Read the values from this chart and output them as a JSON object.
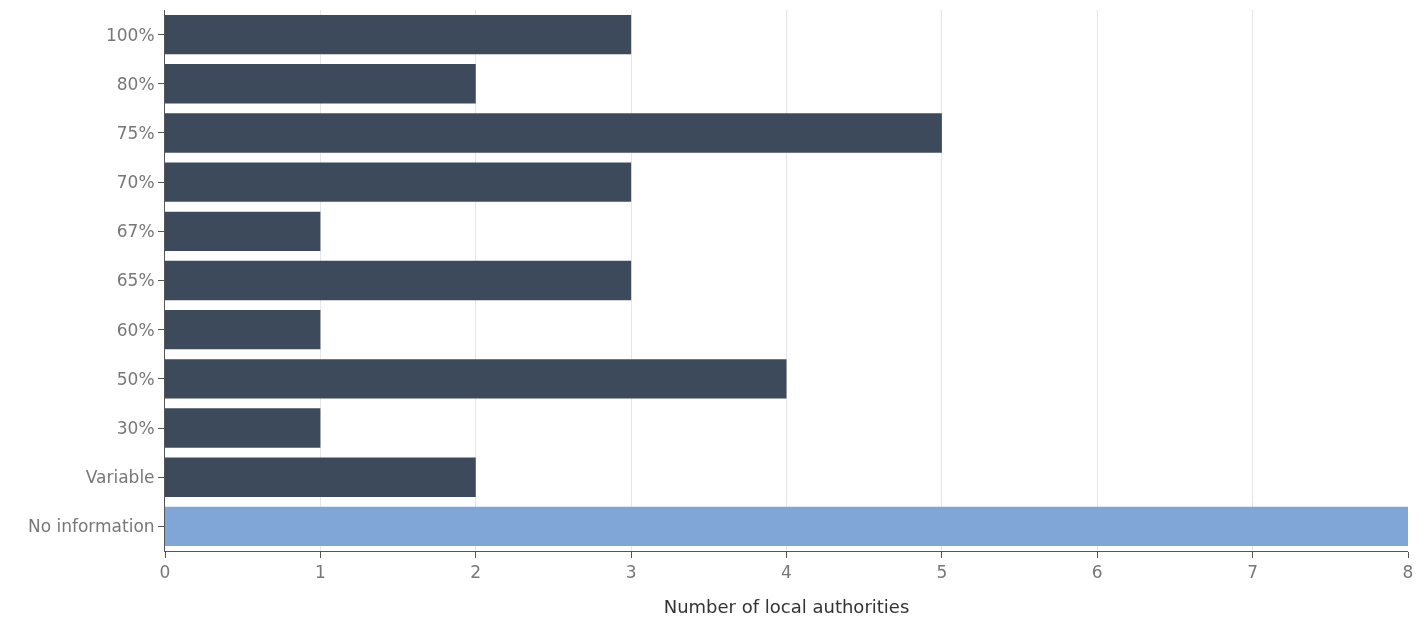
{
  "chart_data": {
    "type": "bar",
    "orientation": "horizontal",
    "xlabel": "Number of local authorities",
    "categories": [
      "100%",
      "80%",
      "75%",
      "70%",
      "67%",
      "65%",
      "60%",
      "50%",
      "30%",
      "Variable",
      "No information"
    ],
    "values": [
      3,
      2,
      5,
      3,
      1,
      3,
      1,
      4,
      1,
      2,
      8
    ],
    "colors": [
      "#3d4a5c",
      "#3d4a5c",
      "#3d4a5c",
      "#3d4a5c",
      "#3d4a5c",
      "#3d4a5c",
      "#3d4a5c",
      "#3d4a5c",
      "#3d4a5c",
      "#3d4a5c",
      "#7fa6d6"
    ],
    "xlim": [
      0,
      8
    ],
    "xticks": [
      0,
      1,
      2,
      3,
      4,
      5,
      6,
      7,
      8
    ],
    "grid": "x"
  }
}
